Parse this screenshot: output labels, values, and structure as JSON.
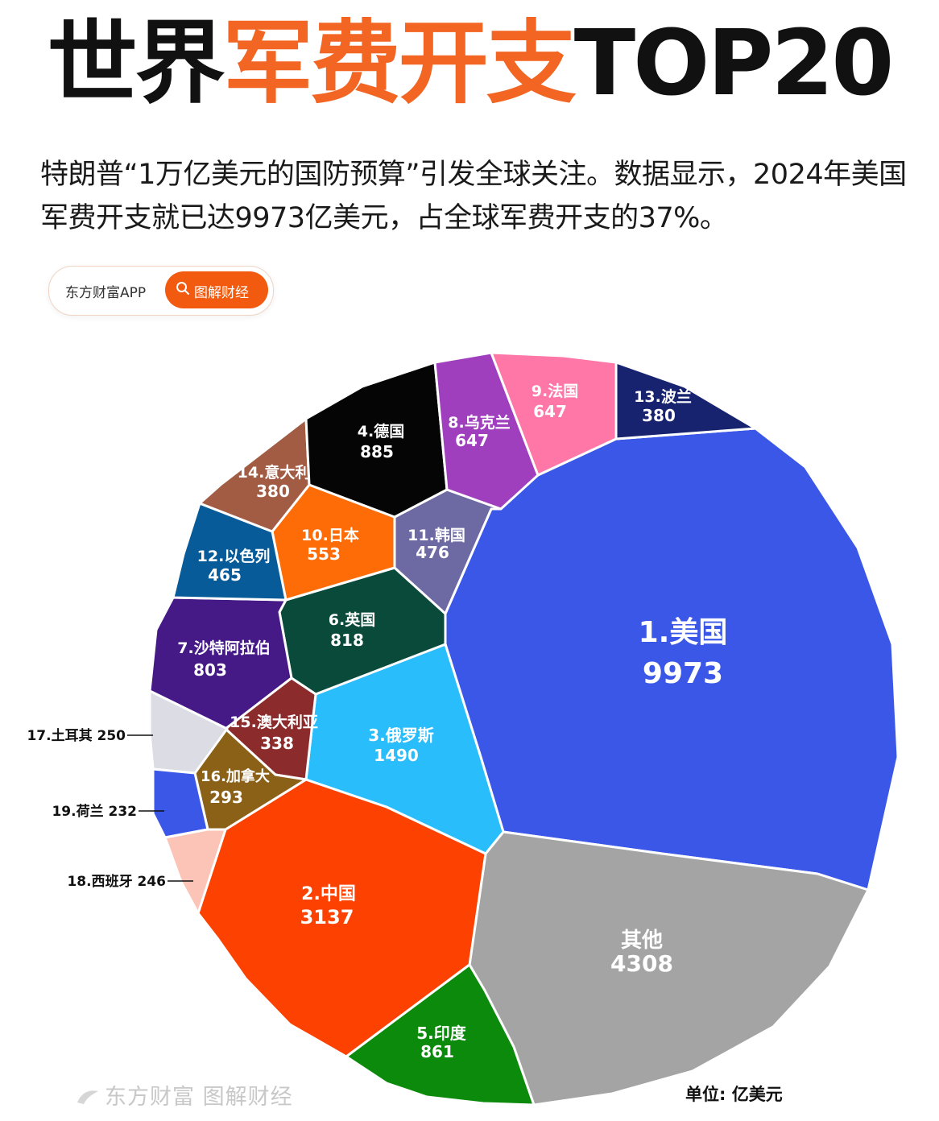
{
  "title": {
    "part1": "世界",
    "part2": "军费开支",
    "part3": "TOP20"
  },
  "subtitle": "特朗普“1万亿美元的国防预算”引发全球关注。数据显示，2024年美国军费开支就已达9973亿美元，占全球军费开支的37%。",
  "tag": {
    "brand": "东方财富APP",
    "button_label": "图解财经",
    "button_icon": "search-icon",
    "button_color": "#f25a0f"
  },
  "unit_label": "单位: 亿美元",
  "watermark": "东方财富 图解财经",
  "colors": {
    "accent": "#f26522"
  },
  "chart_data": {
    "type": "voronoi-treemap",
    "unit": "亿美元",
    "series": [
      {
        "rank": "1.",
        "country": "美国",
        "value": 9973,
        "color": "#3a57e8"
      },
      {
        "rank": "2.",
        "country": "中国",
        "value": 3137,
        "color": "#fc4101"
      },
      {
        "rank": "3.",
        "country": "俄罗斯",
        "value": 1490,
        "color": "#29bdfb"
      },
      {
        "rank": "4.",
        "country": "德国",
        "value": 885,
        "color": "#050505"
      },
      {
        "rank": "5.",
        "country": "印度",
        "value": 861,
        "color": "#0b8a0b"
      },
      {
        "rank": "6.",
        "country": "英国",
        "value": 818,
        "color": "#0a4a3b"
      },
      {
        "rank": "7.",
        "country": "沙特阿拉伯",
        "value": 803,
        "color": "#451a86"
      },
      {
        "rank": "8.",
        "country": "乌克兰",
        "value": 647,
        "color": "#a03fbe"
      },
      {
        "rank": "9.",
        "country": "法国",
        "value": 647,
        "color": "#ff77a6"
      },
      {
        "rank": "10.",
        "country": "日本",
        "value": 553,
        "color": "#fe6c08"
      },
      {
        "rank": "11.",
        "country": "韩国",
        "value": 476,
        "color": "#6d6aa3"
      },
      {
        "rank": "12.",
        "country": "以色列",
        "value": 465,
        "color": "#075b98"
      },
      {
        "rank": "13.",
        "country": "波兰",
        "value": 380,
        "color": "#17236f"
      },
      {
        "rank": "14.",
        "country": "意大利",
        "value": 380,
        "color": "#a25c44"
      },
      {
        "rank": "15.",
        "country": "澳大利亚",
        "value": 338,
        "color": "#8c2b2b"
      },
      {
        "rank": "16.",
        "country": "加拿大",
        "value": 293,
        "color": "#8b6118"
      },
      {
        "rank": "17.",
        "country": "土耳其",
        "value": 250,
        "color": "#dcdde4"
      },
      {
        "rank": "18.",
        "country": "西班牙",
        "value": 246,
        "color": "#fbc4b6"
      },
      {
        "rank": "19.",
        "country": "荷兰",
        "value": 232,
        "color": "#3a57e8"
      },
      {
        "rank": "",
        "country": "其他",
        "value": 4308,
        "color": "#a4a4a4"
      }
    ]
  }
}
